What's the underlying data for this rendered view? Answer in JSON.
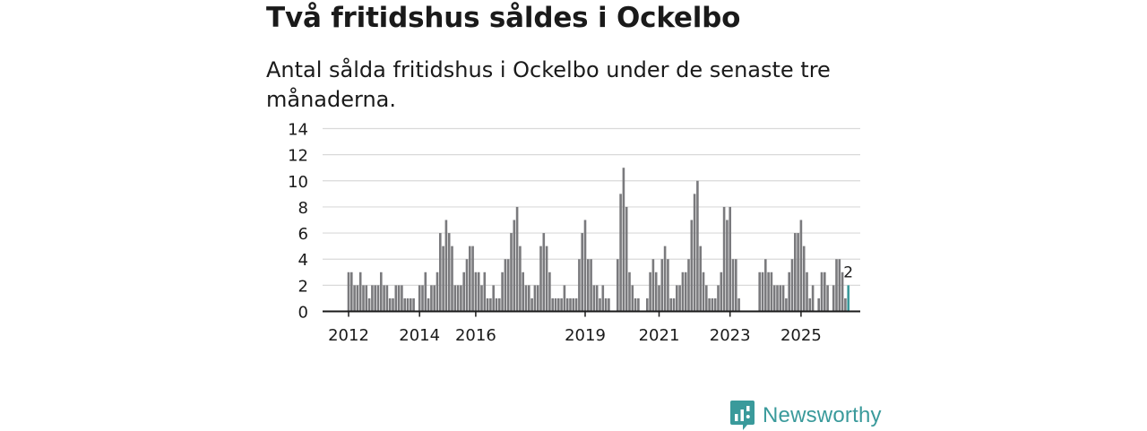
{
  "title": "Två fritidshus såldes i Ockelbo",
  "subtitle": "Antal sålda fritidshus i Ockelbo under de senaste tre månaderna.",
  "brand": {
    "name": "Newsworthy",
    "icon": "newsworthy-logo-icon",
    "color": "#3a9a9b"
  },
  "colors": {
    "bar": "#7a7a7d",
    "highlight": "#3a9a9b",
    "grid": "#d9d9d9",
    "axis": "#1a1a1a"
  },
  "chart_data": {
    "type": "bar",
    "title": "Två fritidshus såldes i Ockelbo",
    "xlabel": "",
    "ylabel": "",
    "ylim": [
      0,
      14
    ],
    "yticks": [
      0,
      2,
      4,
      6,
      8,
      10,
      12,
      14
    ],
    "grid": true,
    "xticks": [
      {
        "label": "2012",
        "index": 0
      },
      {
        "label": "2014",
        "index": 24
      },
      {
        "label": "2016",
        "index": 43
      },
      {
        "label": "2019",
        "index": 80
      },
      {
        "label": "2021",
        "index": 105
      },
      {
        "label": "2023",
        "index": 129
      },
      {
        "label": "2025",
        "index": 153
      }
    ],
    "values": [
      3,
      3,
      2,
      2,
      3,
      2,
      2,
      1,
      2,
      2,
      2,
      3,
      2,
      2,
      1,
      1,
      2,
      2,
      2,
      1,
      1,
      1,
      1,
      0,
      2,
      2,
      3,
      1,
      2,
      2,
      3,
      6,
      5,
      7,
      6,
      5,
      2,
      2,
      2,
      3,
      4,
      5,
      5,
      3,
      3,
      2,
      3,
      1,
      1,
      2,
      1,
      1,
      3,
      4,
      4,
      6,
      7,
      8,
      5,
      3,
      2,
      2,
      1,
      2,
      2,
      5,
      6,
      5,
      3,
      1,
      1,
      1,
      1,
      2,
      1,
      1,
      1,
      1,
      4,
      6,
      7,
      4,
      4,
      2,
      2,
      1,
      2,
      1,
      1,
      0,
      0,
      4,
      9,
      11,
      8,
      3,
      2,
      1,
      1,
      0,
      0,
      1,
      3,
      4,
      3,
      2,
      4,
      5,
      4,
      1,
      1,
      2,
      2,
      3,
      3,
      4,
      7,
      9,
      10,
      5,
      3,
      2,
      1,
      1,
      1,
      2,
      3,
      8,
      7,
      8,
      4,
      4,
      1,
      0,
      0,
      0,
      0,
      0,
      0,
      3,
      3,
      4,
      3,
      3,
      2,
      2,
      2,
      2,
      1,
      3,
      4,
      6,
      6,
      7,
      5,
      3,
      1,
      2,
      0,
      1,
      3,
      3,
      2,
      0,
      2,
      4,
      4,
      3,
      1,
      2
    ],
    "highlight_index": 169,
    "annotation": {
      "index": 169,
      "text": "2"
    }
  }
}
